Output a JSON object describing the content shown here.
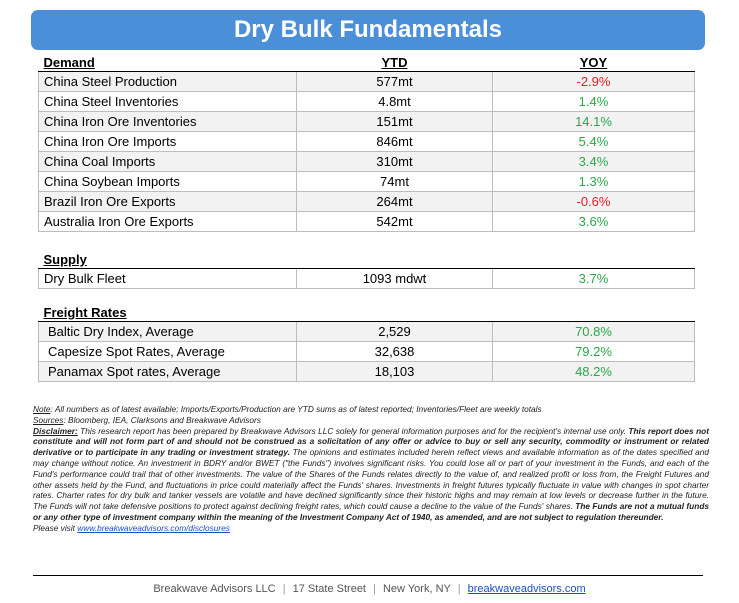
{
  "title": "Dry Bulk Fundamentals",
  "headers": {
    "demand": "Demand",
    "ytd": "YTD",
    "yoy": "YOY",
    "supply": "Supply",
    "freight": "Freight Rates"
  },
  "demand": [
    {
      "label": "China Steel Production",
      "ytd": "577mt",
      "yoy": "-2.9%",
      "trend": "neg"
    },
    {
      "label": "China Steel Inventories",
      "ytd": "4.8mt",
      "yoy": "1.4%",
      "trend": "pos"
    },
    {
      "label": "China Iron Ore Inventories",
      "ytd": "151mt",
      "yoy": "14.1%",
      "trend": "pos"
    },
    {
      "label": "China Iron Ore Imports",
      "ytd": "846mt",
      "yoy": "5.4%",
      "trend": "pos"
    },
    {
      "label": "China Coal Imports",
      "ytd": "310mt",
      "yoy": "3.4%",
      "trend": "pos"
    },
    {
      "label": "China Soybean Imports",
      "ytd": "74mt",
      "yoy": "1.3%",
      "trend": "pos"
    },
    {
      "label": "Brazil Iron Ore Exports",
      "ytd": "264mt",
      "yoy": "-0.6%",
      "trend": "neg"
    },
    {
      "label": "Australia Iron Ore Exports",
      "ytd": "542mt",
      "yoy": "3.6%",
      "trend": "pos"
    }
  ],
  "supply": [
    {
      "label": "Dry Bulk Fleet",
      "ytd": "1093 mdwt",
      "yoy": "3.7%",
      "trend": "pos"
    }
  ],
  "freight": [
    {
      "label": "Baltic Dry Index, Average",
      "ytd": "2,529",
      "yoy": "70.8%",
      "trend": "pos"
    },
    {
      "label": "Capesize Spot Rates, Average",
      "ytd": "32,638",
      "yoy": "79.2%",
      "trend": "pos"
    },
    {
      "label": "Panamax Spot rates, Average",
      "ytd": "18,103",
      "yoy": "48.2%",
      "trend": "pos"
    }
  ],
  "colors": {
    "banner": "#4a8fd8",
    "negative": "#e01f1f",
    "positive": "#2aa84a",
    "link": "#1a4fc4"
  },
  "notes": {
    "note_label": "Note",
    "note_text": ": All numbers as of latest available; Imports/Exports/Production are YTD sums as of latest reported; Inventories/Fleet are weekly totals",
    "sources_label": "Sources",
    "sources_text": ": Bloomberg, IEA, Clarksons and Breakwave Advisors",
    "disclaimer_label": "Disclaimer:",
    "disclaimer_1": " This research report has been prepared by Breakwave Advisors LLC solely for general information purposes and for the recipient's internal use only. ",
    "disclaimer_bold_1": "This report does not constitute and will not form part of and should not be construed as a solicitation of any offer or advice to buy or sell any security, commodity or instrument or related derivative or to participate in any trading or investment strategy.",
    "disclaimer_2": " The opinions and estimates included herein reflect views and available information as of the dates specified and may change without notice. An investment in BDRY and/or BWET (\"the Funds\") involves significant risks. You could lose all or part of your investment in the Funds, and each of the Fund's performance could trail that of other investments. The value of the Shares of the Funds relates directly to the value of, and realized profit or loss from, the Freight Futures and other assets held by the Fund, and fluctuations in price could materially affect the Funds' shares. Investments in freight futures typically fluctuate in value with changes in spot charter rates. Charter rates for dry bulk and tanker vessels are volatile and have declined significantly since their historic highs and may remain at low levels or decrease further in the future. The Funds will not take defensive positions to protect against declining freight rates, which could cause a decline to the value of the Funds' shares. ",
    "disclaimer_bold_2": "The Funds are not a mutual funds or any other type of investment company within the meaning of the Investment Company Act of 1940, as amended, and are not subject to regulation thereunder.",
    "visit_text": "Please visit ",
    "visit_link": "www.breakwaveadvisors.com/disclosures"
  },
  "footer": {
    "company": "Breakwave Advisors LLC",
    "address": "17 State Street",
    "city": "New York, NY",
    "site": "breakwaveadvisors.com",
    "separator": "|"
  }
}
